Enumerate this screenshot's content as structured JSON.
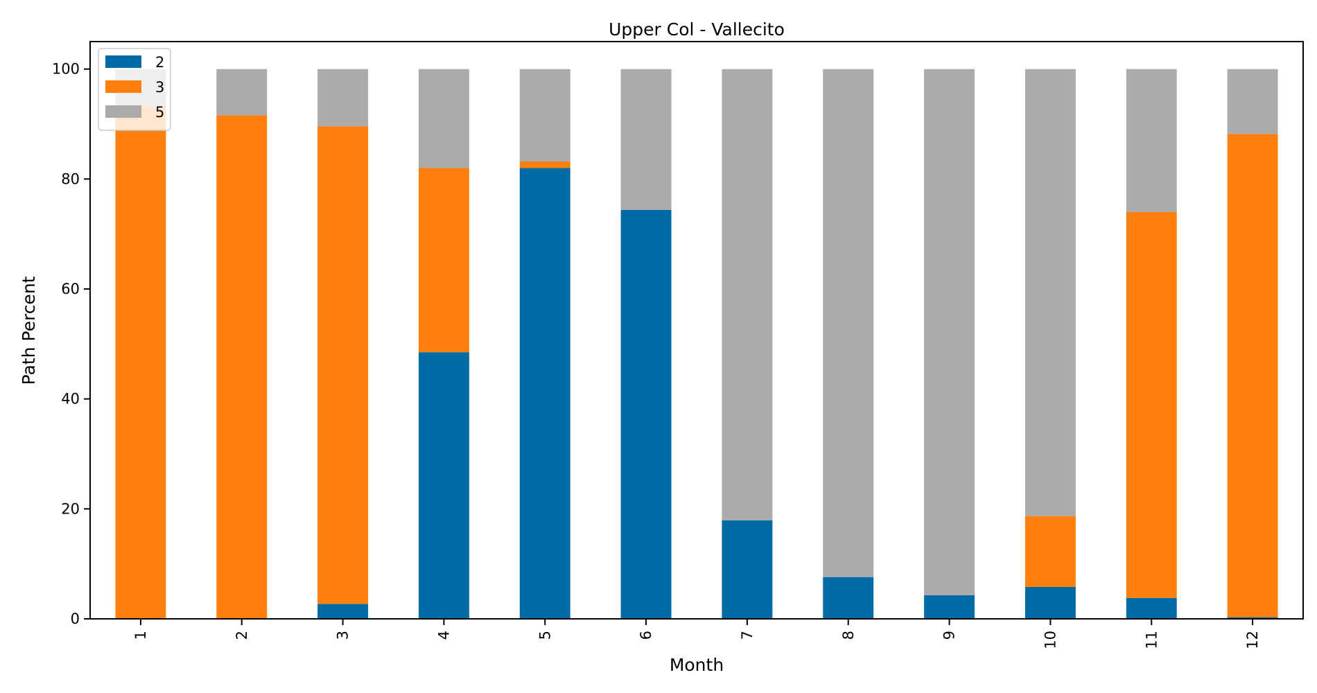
{
  "chart_data": {
    "type": "bar",
    "stacked": true,
    "title": "Upper Col - Vallecito",
    "xlabel": "Month",
    "ylabel": "Path Percent",
    "ylim": [
      0,
      105
    ],
    "yticks": [
      0,
      20,
      40,
      60,
      80,
      100
    ],
    "grid": false,
    "legend_position": "top-left",
    "categories": [
      "1",
      "2",
      "3",
      "4",
      "5",
      "6",
      "7",
      "8",
      "9",
      "10",
      "11",
      "12"
    ],
    "series": [
      {
        "name": "2",
        "color": "#006BA4",
        "values": [
          0,
          0,
          2.7,
          48.5,
          82.0,
          74.4,
          17.9,
          7.6,
          4.3,
          5.8,
          3.8,
          0.3
        ]
      },
      {
        "name": "3",
        "color": "#FF800E",
        "values": [
          93.2,
          91.6,
          86.9,
          33.5,
          1.2,
          0,
          0,
          0,
          0,
          12.9,
          70.2,
          87.9
        ]
      },
      {
        "name": "5",
        "color": "#ABABAB",
        "values": [
          6.8,
          8.4,
          10.4,
          18.0,
          16.8,
          25.6,
          82.1,
          92.4,
          95.7,
          81.3,
          26.0,
          11.8
        ]
      }
    ]
  }
}
